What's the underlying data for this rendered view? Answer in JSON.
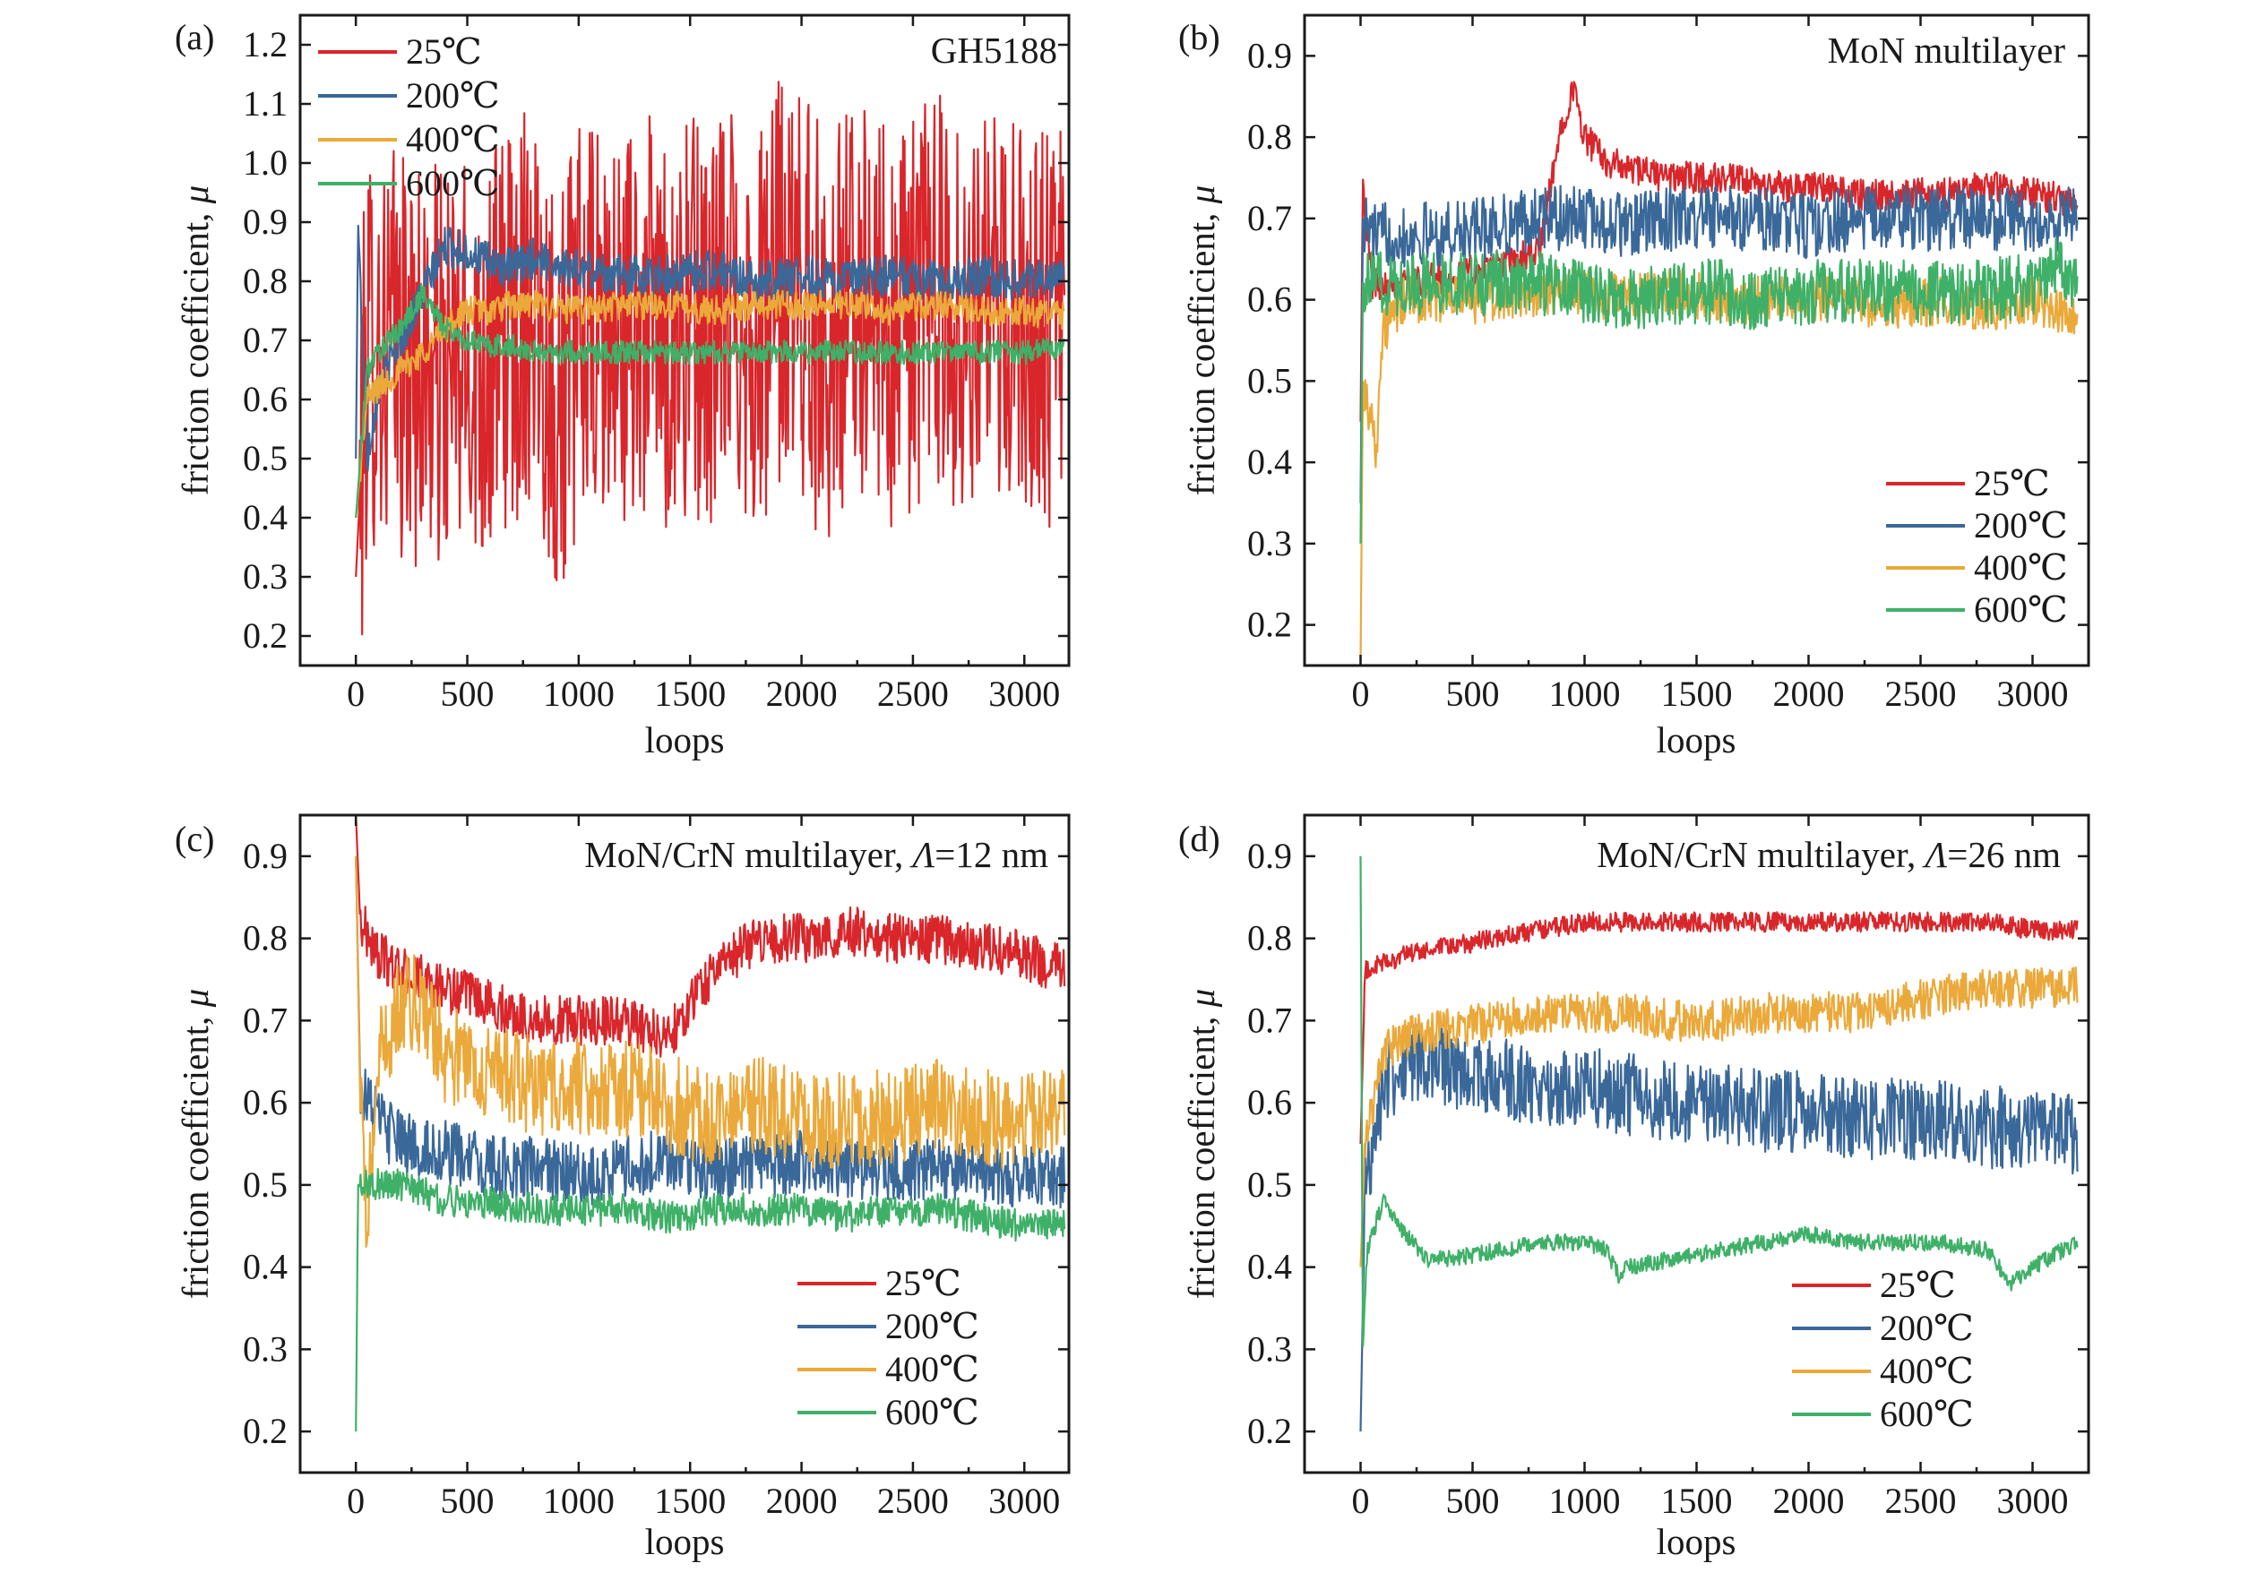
{
  "figure": {
    "colors": {
      "25℃": "#d9262b",
      "200℃": "#3a6899",
      "400℃": "#eaa93a",
      "600℃": "#3fb068"
    }
  },
  "chart_data": [
    {
      "type": "line",
      "panel": "(a)",
      "title": "GH5188",
      "xlabel": "loops",
      "ylabel": "friction coefficient, μ",
      "xlim": [
        -250,
        3200
      ],
      "ylim": [
        0.15,
        1.25
      ],
      "xticks": [
        "0",
        "500",
        "1000",
        "1500",
        "2000",
        "2500",
        "3000"
      ],
      "yticks": [
        "0.2",
        "0.3",
        "0.4",
        "0.5",
        "0.6",
        "0.7",
        "0.8",
        "0.9",
        "1.0",
        "1.1",
        "1.2"
      ],
      "legend_position": "top-left",
      "series": [
        {
          "name": "25℃",
          "color": "#d9262b",
          "noise": 0.35,
          "x": [
            0,
            50,
            100,
            200,
            300,
            400,
            500,
            600,
            700,
            800,
            900,
            1000,
            1100,
            1200,
            1300,
            1400,
            1500,
            1600,
            1700,
            1800,
            1900,
            2000,
            2100,
            2200,
            2300,
            2400,
            2500,
            2600,
            2700,
            2800,
            2900,
            3000,
            3100,
            3180
          ],
          "y": [
            0.3,
            0.68,
            0.7,
            0.68,
            0.66,
            0.64,
            0.66,
            0.68,
            0.72,
            0.8,
            0.6,
            0.72,
            0.7,
            0.72,
            0.74,
            0.7,
            0.74,
            0.72,
            0.78,
            0.7,
            0.8,
            0.78,
            0.7,
            0.75,
            0.8,
            0.68,
            0.75,
            0.8,
            0.72,
            0.78,
            0.7,
            0.78,
            0.72,
            0.7
          ]
        },
        {
          "name": "200℃",
          "color": "#3a6899",
          "noise": 0.035,
          "x": [
            0,
            10,
            50,
            100,
            200,
            300,
            400,
            500,
            600,
            700,
            800,
            900,
            1000,
            1200,
            1400,
            1600,
            1800,
            2000,
            2200,
            2400,
            2600,
            2800,
            3000,
            3180
          ],
          "y": [
            0.5,
            0.9,
            0.5,
            0.62,
            0.7,
            0.78,
            0.86,
            0.85,
            0.83,
            0.82,
            0.84,
            0.83,
            0.82,
            0.81,
            0.81,
            0.82,
            0.8,
            0.81,
            0.8,
            0.81,
            0.8,
            0.81,
            0.8,
            0.81
          ]
        },
        {
          "name": "400℃",
          "color": "#eaa93a",
          "noise": 0.025,
          "x": [
            0,
            50,
            100,
            200,
            300,
            400,
            500,
            600,
            700,
            800,
            1000,
            1200,
            1400,
            1600,
            1800,
            2000,
            2200,
            2400,
            2600,
            2800,
            3000,
            3180
          ],
          "y": [
            0.4,
            0.6,
            0.62,
            0.65,
            0.68,
            0.72,
            0.75,
            0.75,
            0.76,
            0.76,
            0.75,
            0.76,
            0.76,
            0.75,
            0.76,
            0.76,
            0.76,
            0.75,
            0.76,
            0.75,
            0.75,
            0.74
          ]
        },
        {
          "name": "600℃",
          "color": "#3fb068",
          "noise": 0.02,
          "x": [
            0,
            50,
            100,
            200,
            300,
            400,
            500,
            600,
            700,
            800,
            900,
            1000,
            1200,
            1400,
            1600,
            1800,
            2000,
            2200,
            2400,
            2600,
            2800,
            3000,
            3180
          ],
          "y": [
            0.4,
            0.65,
            0.68,
            0.72,
            0.78,
            0.72,
            0.7,
            0.69,
            0.69,
            0.68,
            0.68,
            0.68,
            0.68,
            0.68,
            0.68,
            0.68,
            0.68,
            0.68,
            0.68,
            0.68,
            0.68,
            0.68,
            0.69
          ]
        }
      ]
    },
    {
      "type": "line",
      "panel": "(b)",
      "title": "MoN multilayer",
      "xlabel": "loops",
      "ylabel": "friction coefficient, μ",
      "xlim": [
        -250,
        3250
      ],
      "ylim": [
        0.15,
        0.95
      ],
      "xticks": [
        "0",
        "500",
        "1000",
        "1500",
        "2000",
        "2500",
        "3000"
      ],
      "yticks": [
        "0.2",
        "0.3",
        "0.4",
        "0.5",
        "0.6",
        "0.7",
        "0.8",
        "0.9"
      ],
      "legend_position": "bottom-right",
      "series": [
        {
          "name": "25℃",
          "color": "#d9262b",
          "noise": 0.02,
          "x": [
            0,
            10,
            50,
            100,
            200,
            400,
            600,
            800,
            900,
            950,
            1000,
            1100,
            1200,
            1400,
            1600,
            1800,
            2000,
            2200,
            2400,
            2600,
            2800,
            3000,
            3200
          ],
          "y": [
            0.45,
            0.75,
            0.62,
            0.62,
            0.62,
            0.63,
            0.64,
            0.66,
            0.82,
            0.86,
            0.8,
            0.77,
            0.76,
            0.75,
            0.75,
            0.74,
            0.74,
            0.73,
            0.73,
            0.73,
            0.74,
            0.73,
            0.72
          ]
        },
        {
          "name": "200℃",
          "color": "#3a6899",
          "noise": 0.04,
          "x": [
            0,
            10,
            50,
            200,
            400,
            600,
            800,
            1000,
            1200,
            1400,
            1600,
            1800,
            2000,
            2200,
            2400,
            2600,
            2800,
            3000,
            3200
          ],
          "y": [
            0.35,
            0.7,
            0.68,
            0.68,
            0.68,
            0.69,
            0.7,
            0.7,
            0.69,
            0.7,
            0.7,
            0.7,
            0.69,
            0.7,
            0.7,
            0.7,
            0.7,
            0.7,
            0.7
          ]
        },
        {
          "name": "400℃",
          "color": "#eaa93a",
          "noise": 0.03,
          "x": [
            0,
            10,
            50,
            70,
            100,
            200,
            400,
            600,
            800,
            1000,
            1200,
            1400,
            1600,
            1800,
            2000,
            2200,
            2400,
            2600,
            2800,
            3000,
            3200
          ],
          "y": [
            0.15,
            0.5,
            0.45,
            0.42,
            0.56,
            0.6,
            0.6,
            0.6,
            0.61,
            0.61,
            0.6,
            0.61,
            0.6,
            0.6,
            0.6,
            0.6,
            0.59,
            0.6,
            0.59,
            0.6,
            0.58
          ]
        },
        {
          "name": "600℃",
          "color": "#3fb068",
          "noise": 0.04,
          "x": [
            0,
            10,
            100,
            200,
            400,
            600,
            800,
            1000,
            1200,
            1400,
            1600,
            1800,
            2000,
            2200,
            2400,
            2600,
            2800,
            3000,
            3100,
            3200
          ],
          "y": [
            0.3,
            0.62,
            0.62,
            0.62,
            0.62,
            0.62,
            0.62,
            0.61,
            0.6,
            0.61,
            0.61,
            0.6,
            0.61,
            0.61,
            0.61,
            0.61,
            0.61,
            0.62,
            0.64,
            0.62
          ]
        }
      ]
    },
    {
      "type": "line",
      "panel": "(c)",
      "title": "MoN/CrN multilayer, Λ=12 nm",
      "xlabel": "loops",
      "ylabel": "friction coefficient, μ",
      "xlim": [
        -250,
        3200
      ],
      "ylim": [
        0.15,
        0.95
      ],
      "xticks": [
        "0",
        "500",
        "1000",
        "1500",
        "2000",
        "2500",
        "3000"
      ],
      "yticks": [
        "0.2",
        "0.3",
        "0.4",
        "0.5",
        "0.6",
        "0.7",
        "0.8",
        "0.9"
      ],
      "legend_position": "bottom-right",
      "series": [
        {
          "name": "25℃",
          "color": "#d9262b",
          "noise": 0.03,
          "x": [
            0,
            20,
            100,
            200,
            400,
            600,
            800,
            1000,
            1200,
            1400,
            1500,
            1600,
            1700,
            1800,
            2000,
            2200,
            2400,
            2600,
            2800,
            3000,
            3180
          ],
          "y": [
            0.95,
            0.82,
            0.78,
            0.76,
            0.74,
            0.72,
            0.7,
            0.7,
            0.7,
            0.68,
            0.72,
            0.76,
            0.78,
            0.8,
            0.8,
            0.81,
            0.8,
            0.8,
            0.79,
            0.78,
            0.76
          ]
        },
        {
          "name": "200℃",
          "color": "#3a6899",
          "noise": 0.04,
          "x": [
            0,
            20,
            100,
            200,
            400,
            600,
            800,
            1000,
            1200,
            1400,
            1600,
            1800,
            2000,
            2200,
            2400,
            2600,
            2800,
            3000,
            3180
          ],
          "y": [
            0.9,
            0.62,
            0.58,
            0.55,
            0.54,
            0.52,
            0.52,
            0.51,
            0.52,
            0.53,
            0.52,
            0.52,
            0.53,
            0.52,
            0.52,
            0.52,
            0.52,
            0.51,
            0.51
          ]
        },
        {
          "name": "400℃",
          "color": "#eaa93a",
          "noise": 0.06,
          "x": [
            0,
            20,
            50,
            100,
            200,
            300,
            400,
            600,
            800,
            1000,
            1200,
            1400,
            1600,
            1800,
            2000,
            2200,
            2400,
            2600,
            2800,
            3000,
            3180
          ],
          "y": [
            0.9,
            0.6,
            0.45,
            0.65,
            0.72,
            0.72,
            0.66,
            0.64,
            0.62,
            0.62,
            0.62,
            0.6,
            0.58,
            0.6,
            0.58,
            0.58,
            0.58,
            0.6,
            0.58,
            0.58,
            0.58
          ]
        },
        {
          "name": "600℃",
          "color": "#3fb068",
          "noise": 0.02,
          "x": [
            0,
            10,
            50,
            200,
            400,
            600,
            800,
            1000,
            1200,
            1400,
            1600,
            1800,
            2000,
            2200,
            2400,
            2600,
            2800,
            3000,
            3180
          ],
          "y": [
            0.2,
            0.5,
            0.5,
            0.5,
            0.48,
            0.48,
            0.47,
            0.47,
            0.47,
            0.46,
            0.47,
            0.47,
            0.47,
            0.46,
            0.47,
            0.47,
            0.46,
            0.45,
            0.45
          ]
        }
      ]
    },
    {
      "type": "line",
      "panel": "(d)",
      "title": "MoN/CrN multilayer, Λ=26 nm",
      "xlabel": "loops",
      "ylabel": "friction coefficient, μ",
      "xlim": [
        -250,
        3250
      ],
      "ylim": [
        0.15,
        0.95
      ],
      "xticks": [
        "0",
        "500",
        "1000",
        "1500",
        "2000",
        "2500",
        "3000"
      ],
      "yticks": [
        "0.2",
        "0.3",
        "0.4",
        "0.5",
        "0.6",
        "0.7",
        "0.8",
        "0.9"
      ],
      "legend_position": "bottom-left",
      "series": [
        {
          "name": "25℃",
          "color": "#d9262b",
          "noise": 0.012,
          "x": [
            0,
            20,
            100,
            200,
            400,
            600,
            800,
            1000,
            1200,
            1400,
            1600,
            1800,
            2000,
            2200,
            2400,
            2600,
            2800,
            3000,
            3200
          ],
          "y": [
            0.55,
            0.76,
            0.77,
            0.78,
            0.79,
            0.8,
            0.81,
            0.82,
            0.82,
            0.82,
            0.82,
            0.82,
            0.82,
            0.82,
            0.82,
            0.82,
            0.82,
            0.81,
            0.81
          ]
        },
        {
          "name": "200℃",
          "color": "#3a6899",
          "noise": 0.05,
          "x": [
            0,
            20,
            100,
            200,
            400,
            600,
            800,
            1000,
            1200,
            1400,
            1600,
            1800,
            2000,
            2200,
            2400,
            2600,
            2800,
            3000,
            3200
          ],
          "y": [
            0.2,
            0.5,
            0.62,
            0.65,
            0.64,
            0.63,
            0.62,
            0.62,
            0.61,
            0.6,
            0.6,
            0.59,
            0.59,
            0.58,
            0.58,
            0.58,
            0.57,
            0.57,
            0.56
          ]
        },
        {
          "name": "400℃",
          "color": "#eaa93a",
          "noise": 0.025,
          "x": [
            0,
            20,
            100,
            200,
            400,
            600,
            800,
            1000,
            1200,
            1400,
            1600,
            1800,
            2000,
            2200,
            2400,
            2600,
            2800,
            3000,
            3200
          ],
          "y": [
            0.4,
            0.55,
            0.66,
            0.68,
            0.69,
            0.7,
            0.71,
            0.71,
            0.71,
            0.7,
            0.7,
            0.71,
            0.71,
            0.71,
            0.72,
            0.73,
            0.74,
            0.74,
            0.74
          ]
        },
        {
          "name": "600℃",
          "color": "#3fb068",
          "noise": 0.01,
          "x": [
            0,
            10,
            30,
            100,
            200,
            300,
            400,
            600,
            800,
            1000,
            1100,
            1150,
            1200,
            1400,
            1600,
            1800,
            2000,
            2200,
            2400,
            2600,
            2800,
            2900,
            3000,
            3200
          ],
          "y": [
            0.9,
            0.3,
            0.42,
            0.48,
            0.44,
            0.41,
            0.41,
            0.42,
            0.43,
            0.43,
            0.42,
            0.39,
            0.4,
            0.41,
            0.42,
            0.43,
            0.44,
            0.43,
            0.43,
            0.43,
            0.42,
            0.38,
            0.4,
            0.43
          ]
        }
      ]
    }
  ]
}
